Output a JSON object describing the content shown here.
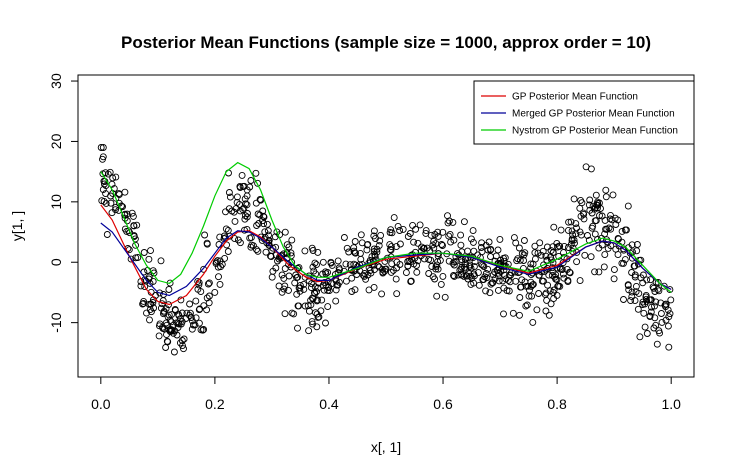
{
  "chart_data": {
    "type": "scatter",
    "title": "Posterior Mean Functions (sample size = 1000, approx order = 10)",
    "xlabel": "x[, 1]",
    "ylabel": "y[1, ]",
    "xlim": [
      -0.04,
      1.04
    ],
    "ylim": [
      -19,
      31
    ],
    "x_ticks": [
      "0.0",
      "0.2",
      "0.4",
      "0.6",
      "0.8",
      "1.0"
    ],
    "y_ticks": [
      "-10",
      "0",
      "10",
      "20",
      "30"
    ],
    "grid": false,
    "legend_position": "top-right",
    "points": {
      "marker": "open-circle",
      "color": "#000000",
      "count": 1000,
      "trend_x": [
        0.0,
        0.02,
        0.05,
        0.08,
        0.11,
        0.14,
        0.17,
        0.2,
        0.22,
        0.25,
        0.28,
        0.31,
        0.34,
        0.37,
        0.4,
        0.45,
        0.5,
        0.55,
        0.6,
        0.65,
        0.7,
        0.75,
        0.8,
        0.84,
        0.87,
        0.9,
        0.93,
        0.96,
        1.0
      ],
      "trend_y": [
        15,
        12,
        5,
        -3,
        -10,
        -11,
        -8,
        -2,
        5,
        9,
        6,
        0,
        -3,
        -6,
        -4,
        0,
        1,
        1.5,
        1.5,
        0.5,
        -1,
        -3,
        -1,
        5,
        8,
        5,
        -2,
        -6,
        -8
      ],
      "spread": [
        2.5,
        2.5,
        3,
        3,
        3,
        3,
        3,
        3.5,
        3.5,
        3.5,
        3.5,
        3,
        3,
        3.5,
        3,
        2.5,
        2.5,
        2.5,
        2.5,
        2.5,
        2.5,
        3,
        3,
        3.5,
        3.5,
        3.5,
        3.5,
        3,
        3
      ]
    },
    "series": [
      {
        "name": "GP Posterior Mean Function",
        "color": "#dd0000",
        "x": [
          0.0,
          0.02,
          0.05,
          0.08,
          0.1,
          0.12,
          0.15,
          0.18,
          0.2,
          0.22,
          0.24,
          0.26,
          0.28,
          0.3,
          0.33,
          0.36,
          0.38,
          0.4,
          0.45,
          0.5,
          0.55,
          0.6,
          0.65,
          0.7,
          0.75,
          0.8,
          0.85,
          0.88,
          0.9,
          0.92,
          0.95,
          0.98,
          1.0
        ],
        "y": [
          9.5,
          7,
          1,
          -4.5,
          -6.5,
          -7,
          -5.5,
          -2,
          1,
          3.5,
          5,
          5.2,
          4.2,
          2.5,
          -0.5,
          -2.5,
          -3.2,
          -3,
          -1,
          0.5,
          1,
          1.5,
          0.8,
          -0.5,
          -1.8,
          -0.5,
          2.5,
          3.5,
          3.2,
          2,
          -1,
          -3.5,
          -4.5
        ]
      },
      {
        "name": "Merged GP Posterior Mean Function",
        "color": "#000099",
        "x": [
          0.0,
          0.02,
          0.05,
          0.08,
          0.1,
          0.12,
          0.15,
          0.18,
          0.2,
          0.22,
          0.24,
          0.26,
          0.28,
          0.3,
          0.33,
          0.36,
          0.38,
          0.4,
          0.45,
          0.5,
          0.55,
          0.6,
          0.65,
          0.7,
          0.75,
          0.8,
          0.85,
          0.88,
          0.9,
          0.92,
          0.95,
          0.98,
          1.0
        ],
        "y": [
          6.5,
          5,
          1,
          -3,
          -5,
          -5.5,
          -4,
          -1,
          1.5,
          4,
          5.2,
          5,
          4,
          2.5,
          0,
          -2,
          -3,
          -3,
          -0.8,
          0.8,
          1.2,
          1.5,
          0.8,
          -0.8,
          -2,
          -0.8,
          2.5,
          3.5,
          3.2,
          2,
          -1,
          -3.5,
          -4.5
        ]
      },
      {
        "name": "Nystrom GP Posterior Mean Function",
        "color": "#00cc00",
        "x": [
          0.0,
          0.02,
          0.04,
          0.06,
          0.08,
          0.1,
          0.12,
          0.14,
          0.16,
          0.18,
          0.2,
          0.22,
          0.24,
          0.26,
          0.28,
          0.3,
          0.32,
          0.34,
          0.36,
          0.38,
          0.4,
          0.45,
          0.5,
          0.55,
          0.6,
          0.65,
          0.7,
          0.75,
          0.8,
          0.85,
          0.88,
          0.9,
          0.92,
          0.95,
          0.98,
          1.0
        ],
        "y": [
          15,
          12,
          7.5,
          3,
          -0.5,
          -3,
          -3.5,
          -2,
          1.5,
          6,
          11,
          15,
          16.5,
          15.5,
          12,
          7,
          2.5,
          -0.5,
          -2,
          -2.5,
          -2.5,
          -1,
          0.8,
          1.5,
          1.5,
          1,
          -0.5,
          -1.5,
          0.5,
          3,
          4,
          3.5,
          2.5,
          -0.5,
          -3.5,
          -5
        ]
      }
    ]
  }
}
